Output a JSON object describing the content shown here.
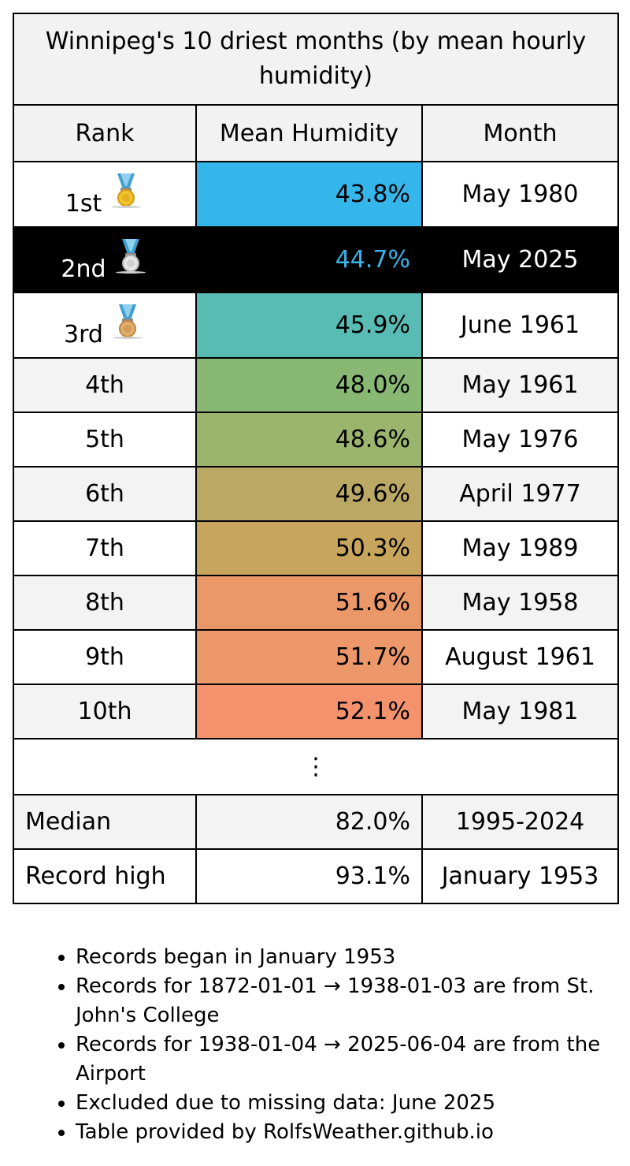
{
  "title": "Winnipeg's 10 driest months (by mean hourly humidity)",
  "headers": {
    "rank": "Rank",
    "humidity": "Mean Humidity",
    "month": "Month"
  },
  "rows": [
    {
      "rank": "1st",
      "value": "43.8%",
      "month": "May 1980",
      "color": "#35b6ea",
      "medal": "gold-medal-icon"
    },
    {
      "rank": "2nd",
      "value": "44.7%",
      "month": "May 2025",
      "color": "#000000",
      "medal": "silver-medal-icon",
      "highlight": true
    },
    {
      "rank": "3rd",
      "value": "45.9%",
      "month": "June 1961",
      "color": "#58bcb4",
      "medal": "bronze-medal-icon"
    },
    {
      "rank": "4th",
      "value": "48.0%",
      "month": "May 1961",
      "color": "#88b874"
    },
    {
      "rank": "5th",
      "value": "48.6%",
      "month": "May 1976",
      "color": "#9bb56c"
    },
    {
      "rank": "6th",
      "value": "49.6%",
      "month": "April 1977",
      "color": "#bba864"
    },
    {
      "rank": "7th",
      "value": "50.3%",
      "month": "May 1989",
      "color": "#c8a55c"
    },
    {
      "rank": "8th",
      "value": "51.6%",
      "month": "May 1958",
      "color": "#ea9868"
    },
    {
      "rank": "9th",
      "value": "51.7%",
      "month": "August 1961",
      "color": "#ec986a"
    },
    {
      "rank": "10th",
      "value": "52.1%",
      "month": "May 1981",
      "color": "#f4926e"
    }
  ],
  "ellipsis": "⋮",
  "summary": [
    {
      "label": "Median",
      "value": "82.0%",
      "period": "1995-2024"
    },
    {
      "label": "Record high",
      "value": "93.1%",
      "period": "January 1953"
    }
  ],
  "notes": [
    "Records began in January 1953",
    "Records for 1872-01-01 → 1938-01-03 are from St. John's College",
    "Records for 1938-01-04 → 2025-06-04 are from the Airport",
    "Excluded due to missing data: June 2025",
    "Table provided by RolfsWeather.github.io"
  ]
}
